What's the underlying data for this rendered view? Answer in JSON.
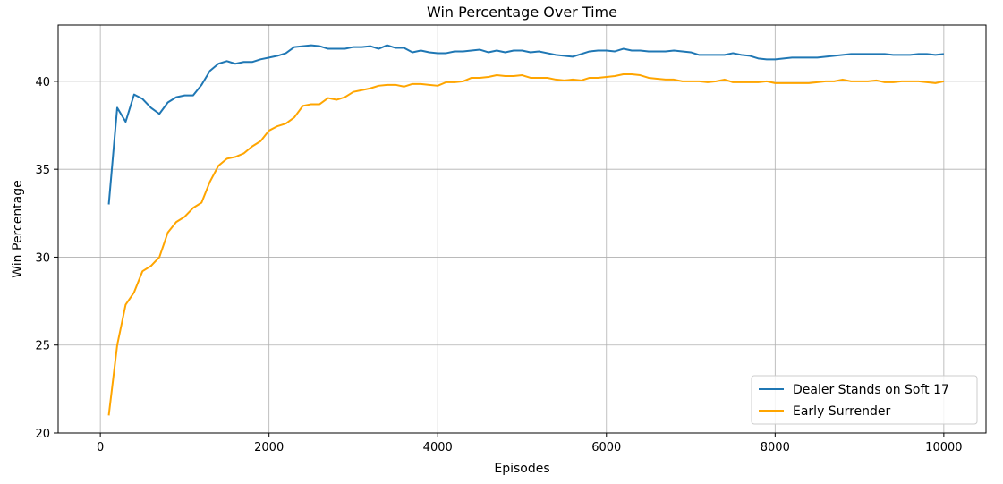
{
  "chart_data": {
    "type": "line",
    "title": "Win Percentage Over Time",
    "xlabel": "Episodes",
    "ylabel": "Win Percentage",
    "xlim": [
      -500,
      10500
    ],
    "ylim": [
      20,
      43.2
    ],
    "xticks": [
      0,
      2000,
      4000,
      6000,
      8000,
      10000
    ],
    "yticks": [
      20,
      25,
      30,
      35,
      40
    ],
    "grid": true,
    "legend_position": "lower-right",
    "x": [
      100,
      200,
      300,
      400,
      500,
      600,
      700,
      800,
      900,
      1000,
      1100,
      1200,
      1300,
      1400,
      1500,
      1600,
      1700,
      1800,
      1900,
      2000,
      2100,
      2200,
      2300,
      2400,
      2500,
      2600,
      2700,
      2800,
      2900,
      3000,
      3100,
      3200,
      3300,
      3400,
      3500,
      3600,
      3700,
      3800,
      3900,
      4000,
      4100,
      4200,
      4300,
      4400,
      4500,
      4600,
      4700,
      4800,
      4900,
      5000,
      5100,
      5200,
      5300,
      5400,
      5500,
      5600,
      5700,
      5800,
      5900,
      6000,
      6100,
      6200,
      6300,
      6400,
      6500,
      6600,
      6700,
      6800,
      6900,
      7000,
      7100,
      7200,
      7300,
      7400,
      7500,
      7600,
      7700,
      7800,
      7900,
      8000,
      8100,
      8200,
      8300,
      8400,
      8500,
      8600,
      8700,
      8800,
      8900,
      9000,
      9100,
      9200,
      9300,
      9400,
      9500,
      9600,
      9700,
      9800,
      9900,
      10000
    ],
    "series": [
      {
        "name": "Dealer Stands on Soft 17",
        "color": "#1f77b4",
        "values": [
          33.0,
          38.5,
          37.7,
          39.25,
          39.0,
          38.5,
          38.15,
          38.8,
          39.1,
          39.2,
          39.2,
          39.8,
          40.6,
          41.0,
          41.15,
          41.0,
          41.1,
          41.1,
          41.25,
          41.35,
          41.45,
          41.6,
          41.95,
          42.0,
          42.05,
          42.0,
          41.85,
          41.85,
          41.85,
          41.95,
          41.95,
          42.0,
          41.85,
          42.05,
          41.9,
          41.9,
          41.65,
          41.75,
          41.65,
          41.6,
          41.6,
          41.7,
          41.7,
          41.75,
          41.8,
          41.65,
          41.75,
          41.65,
          41.75,
          41.75,
          41.65,
          41.7,
          41.6,
          41.5,
          41.45,
          41.4,
          41.55,
          41.7,
          41.75,
          41.75,
          41.7,
          41.85,
          41.75,
          41.75,
          41.7,
          41.7,
          41.7,
          41.75,
          41.7,
          41.65,
          41.5,
          41.5,
          41.5,
          41.5,
          41.6,
          41.5,
          41.45,
          41.3,
          41.25,
          41.25,
          41.3,
          41.35,
          41.35,
          41.35,
          41.35,
          41.4,
          41.45,
          41.5,
          41.55,
          41.55,
          41.55,
          41.55,
          41.55,
          41.5,
          41.5,
          41.5,
          41.55,
          41.55,
          41.5,
          41.55
        ]
      },
      {
        "name": "Early Surrender",
        "color": "#ffa500",
        "values": [
          21.0,
          25.0,
          27.3,
          28.0,
          29.2,
          29.5,
          30.0,
          31.4,
          32.0,
          32.3,
          32.8,
          33.1,
          34.3,
          35.2,
          35.6,
          35.7,
          35.9,
          36.3,
          36.6,
          37.2,
          37.45,
          37.6,
          37.95,
          38.6,
          38.7,
          38.7,
          39.05,
          38.95,
          39.1,
          39.4,
          39.5,
          39.6,
          39.75,
          39.8,
          39.8,
          39.7,
          39.85,
          39.85,
          39.8,
          39.75,
          39.95,
          39.95,
          40.0,
          40.2,
          40.2,
          40.25,
          40.35,
          40.3,
          40.3,
          40.35,
          40.2,
          40.2,
          40.2,
          40.1,
          40.05,
          40.1,
          40.05,
          40.2,
          40.2,
          40.25,
          40.3,
          40.4,
          40.4,
          40.35,
          40.2,
          40.15,
          40.1,
          40.1,
          40.0,
          40.0,
          40.0,
          39.95,
          40.0,
          40.1,
          39.95,
          39.95,
          39.95,
          39.95,
          40.0,
          39.9,
          39.9,
          39.9,
          39.9,
          39.9,
          39.95,
          40.0,
          40.0,
          40.1,
          40.0,
          40.0,
          40.0,
          40.05,
          39.95,
          39.95,
          40.0,
          40.0,
          40.0,
          39.95,
          39.9,
          40.0
        ]
      }
    ]
  }
}
